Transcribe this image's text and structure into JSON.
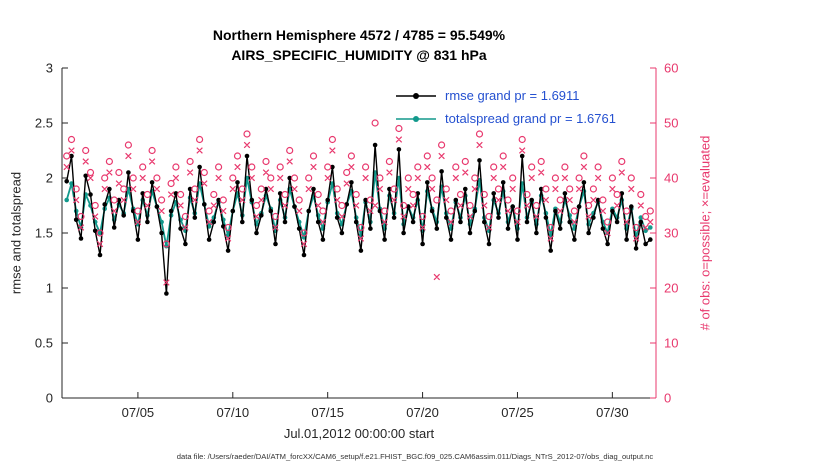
{
  "title": {
    "line1": "Northern Hemisphere 4572 / 4785 = 95.549%",
    "line2": "AIRS_SPECIFIC_HUMIDITY @ 831 hPa"
  },
  "axes": {
    "ylabel_left": "rmse and totalspread",
    "ylabel_right": "# of obs: o=possible; ×=evaluated",
    "xlabel": "Jul.01,2012 00:00:00 start",
    "left_ticks": [
      0,
      0.5,
      1,
      1.5,
      2,
      2.5,
      3
    ],
    "right_ticks": [
      0,
      10,
      20,
      30,
      40,
      50,
      60
    ]
  },
  "legend": {
    "text_color": "#2450d0",
    "entries": [
      {
        "label": "rmse grand pr = 1.6911",
        "color": "#000000"
      },
      {
        "label": "totalspread grand pr = 1.6761",
        "color": "#12998c"
      }
    ]
  },
  "caption": "data file: /Users/raeder/DAI/ATM_forcXX/CAM6_setup/f.e21.FHIST_BGC.f09_025.CAM6assim.011/Diags_NTrS_2012-07/obs_diag_output.nc",
  "colors": {
    "rmse": "#000000",
    "totalspread": "#12998c",
    "obs": "#e8386d",
    "axis": "#262626",
    "background": "#ffffff"
  },
  "chart_data": {
    "type": "line",
    "title": "Northern Hemisphere 4572 / 4785 = 95.549%",
    "subtitle": "AIRS_SPECIFIC_HUMIDITY @ 831 hPa",
    "xlabel": "Jul.01,2012 00:00:00 start",
    "ylabel_left": "rmse and totalspread",
    "ylabel_right": "# of obs: o=possible; ×=evaluated",
    "xlim": [
      1,
      32.3
    ],
    "ylim_left": [
      0,
      3
    ],
    "ylim_right": [
      0,
      60
    ],
    "grid": false,
    "legend_position": "top-center-inside",
    "x_tick_values": [
      5,
      10,
      15,
      20,
      25,
      30
    ],
    "x_tick_labels": [
      "07/05",
      "07/10",
      "07/15",
      "07/20",
      "07/25",
      "07/30"
    ],
    "stats": {
      "region": "Northern Hemisphere",
      "level": "831 hPa",
      "possible_total": 4785,
      "evaluated_total": 4572,
      "percent_evaluated": 95.549,
      "rmse_grand_mean": 1.6911,
      "totalspread_grand_mean": 1.6761
    },
    "x": [
      1.25,
      1.5,
      1.75,
      2,
      2.25,
      2.5,
      2.75,
      3,
      3.25,
      3.5,
      3.75,
      4,
      4.25,
      4.5,
      4.75,
      5,
      5.25,
      5.5,
      5.75,
      6,
      6.25,
      6.5,
      6.75,
      7,
      7.25,
      7.5,
      7.75,
      8,
      8.25,
      8.5,
      8.75,
      9,
      9.25,
      9.5,
      9.75,
      10,
      10.25,
      10.5,
      10.75,
      11,
      11.25,
      11.5,
      11.75,
      12,
      12.25,
      12.5,
      12.75,
      13,
      13.25,
      13.5,
      13.75,
      14,
      14.25,
      14.5,
      14.75,
      15,
      15.25,
      15.5,
      15.75,
      16,
      16.25,
      16.5,
      16.75,
      17,
      17.25,
      17.5,
      17.75,
      18,
      18.25,
      18.5,
      18.75,
      19,
      19.25,
      19.5,
      19.75,
      20,
      20.25,
      20.5,
      20.75,
      21,
      21.25,
      21.5,
      21.75,
      22,
      22.25,
      22.5,
      22.75,
      23,
      23.25,
      23.5,
      23.75,
      24,
      24.25,
      24.5,
      24.75,
      25,
      25.25,
      25.5,
      25.75,
      26,
      26.25,
      26.5,
      26.75,
      27,
      27.25,
      27.5,
      27.75,
      28,
      28.25,
      28.5,
      28.75,
      29,
      29.25,
      29.5,
      29.75,
      30,
      30.25,
      30.5,
      30.75,
      31,
      31.25,
      31.5,
      31.75,
      32
    ],
    "series": [
      {
        "name": "rmse",
        "axis": "left",
        "color": "#000000",
        "marker": "filled-circle",
        "line": true,
        "values": [
          1.97,
          2.2,
          1.62,
          1.45,
          2.02,
          1.85,
          1.52,
          1.3,
          1.76,
          1.9,
          1.55,
          1.8,
          1.66,
          2.05,
          1.7,
          1.44,
          1.86,
          1.6,
          1.96,
          1.74,
          1.5,
          0.95,
          1.7,
          1.86,
          1.54,
          1.4,
          1.9,
          1.64,
          2.1,
          1.76,
          1.44,
          1.6,
          1.8,
          1.56,
          1.34,
          1.7,
          1.96,
          1.6,
          2.2,
          1.8,
          1.5,
          1.66,
          1.9,
          1.7,
          1.4,
          1.86,
          1.6,
          2.0,
          1.74,
          1.54,
          1.3,
          1.7,
          1.9,
          1.6,
          1.44,
          1.8,
          2.1,
          1.64,
          1.5,
          1.76,
          1.96,
          1.6,
          1.34,
          1.8,
          1.54,
          2.3,
          1.7,
          1.44,
          1.9,
          1.64,
          2.26,
          1.5,
          1.74,
          1.6,
          1.86,
          1.4,
          1.96,
          1.7,
          1.54,
          2.06,
          1.64,
          1.44,
          1.8,
          1.6,
          1.9,
          1.5,
          1.7,
          2.16,
          1.6,
          1.4,
          1.86,
          1.64,
          1.96,
          1.54,
          1.74,
          1.44,
          2.2,
          1.6,
          1.8,
          1.5,
          1.9,
          1.64,
          1.34,
          1.7,
          1.54,
          1.86,
          1.6,
          1.44,
          1.74,
          1.96,
          1.5,
          1.64,
          1.8,
          1.54,
          1.4,
          1.7,
          1.6,
          1.86,
          1.44,
          1.74,
          1.36,
          1.6,
          1.4,
          1.44
        ]
      },
      {
        "name": "totalspread",
        "axis": "left",
        "color": "#12998c",
        "marker": "filled-circle",
        "line": true,
        "values": [
          1.8,
          1.95,
          1.7,
          1.55,
          1.85,
          1.75,
          1.6,
          1.5,
          1.72,
          1.82,
          1.62,
          1.76,
          1.68,
          1.9,
          1.72,
          1.58,
          1.8,
          1.66,
          1.88,
          1.74,
          1.6,
          1.38,
          1.66,
          1.78,
          1.62,
          1.52,
          1.82,
          1.68,
          1.95,
          1.76,
          1.56,
          1.64,
          1.78,
          1.62,
          1.48,
          1.7,
          1.86,
          1.66,
          2.0,
          1.78,
          1.58,
          1.68,
          1.84,
          1.72,
          1.52,
          1.8,
          1.64,
          1.9,
          1.74,
          1.6,
          1.46,
          1.7,
          1.84,
          1.66,
          1.54,
          1.78,
          1.95,
          1.68,
          1.58,
          1.76,
          1.88,
          1.64,
          1.48,
          1.78,
          1.6,
          2.05,
          1.72,
          1.54,
          1.84,
          1.68,
          2.0,
          1.58,
          1.74,
          1.64,
          1.8,
          1.52,
          1.88,
          1.72,
          1.6,
          1.92,
          1.68,
          1.54,
          1.78,
          1.64,
          1.84,
          1.58,
          1.72,
          1.98,
          1.64,
          1.52,
          1.8,
          1.68,
          1.88,
          1.6,
          1.74,
          1.54,
          1.95,
          1.64,
          1.78,
          1.58,
          1.84,
          1.68,
          1.48,
          1.72,
          1.6,
          1.8,
          1.66,
          1.54,
          1.74,
          1.88,
          1.58,
          1.68,
          1.78,
          1.6,
          1.5,
          1.72,
          1.64,
          1.8,
          1.54,
          1.72,
          1.46,
          1.64,
          1.52,
          1.55
        ]
      },
      {
        "name": "possible",
        "axis": "right",
        "color": "#e8386d",
        "marker": "open-circle",
        "line": false,
        "values": [
          44,
          47,
          38,
          33,
          45,
          41,
          35,
          30,
          40,
          43,
          36,
          41,
          38,
          46,
          40,
          34,
          42,
          37,
          45,
          40,
          36,
          28,
          39,
          42,
          37,
          33,
          43,
          38,
          47,
          41,
          34,
          37,
          42,
          36,
          31,
          40,
          44,
          38,
          48,
          42,
          35,
          38,
          43,
          40,
          33,
          42,
          37,
          45,
          40,
          36,
          30,
          40,
          44,
          37,
          34,
          42,
          47,
          38,
          35,
          41,
          44,
          37,
          31,
          42,
          36,
          50,
          40,
          34,
          43,
          38,
          49,
          35,
          40,
          37,
          42,
          33,
          44,
          40,
          36,
          46,
          38,
          34,
          42,
          37,
          43,
          35,
          40,
          48,
          37,
          33,
          42,
          38,
          44,
          36,
          40,
          34,
          47,
          37,
          42,
          35,
          43,
          38,
          31,
          40,
          36,
          42,
          38,
          34,
          40,
          44,
          35,
          38,
          42,
          36,
          32,
          40,
          37,
          43,
          34,
          40,
          31,
          37,
          33,
          34
        ]
      },
      {
        "name": "evaluated",
        "axis": "right",
        "color": "#e8386d",
        "marker": "x",
        "line": false,
        "values": [
          42,
          45,
          36,
          31,
          43,
          40,
          33,
          28,
          38,
          41,
          34,
          39,
          36,
          44,
          38,
          32,
          40,
          35,
          43,
          38,
          34,
          21,
          37,
          40,
          35,
          31,
          41,
          36,
          45,
          39,
          32,
          35,
          40,
          34,
          29,
          38,
          42,
          36,
          46,
          40,
          33,
          36,
          41,
          38,
          31,
          40,
          35,
          43,
          38,
          34,
          28,
          38,
          42,
          35,
          32,
          40,
          45,
          36,
          33,
          39,
          42,
          35,
          29,
          40,
          34,
          35,
          38,
          32,
          41,
          36,
          47,
          33,
          38,
          35,
          40,
          31,
          42,
          38,
          22,
          44,
          36,
          32,
          40,
          35,
          41,
          33,
          38,
          46,
          35,
          31,
          40,
          36,
          42,
          34,
          38,
          32,
          45,
          35,
          40,
          33,
          41,
          36,
          29,
          38,
          34,
          40,
          36,
          32,
          38,
          42,
          33,
          36,
          40,
          34,
          30,
          38,
          35,
          41,
          32,
          38,
          29,
          35,
          31,
          32
        ]
      }
    ]
  }
}
